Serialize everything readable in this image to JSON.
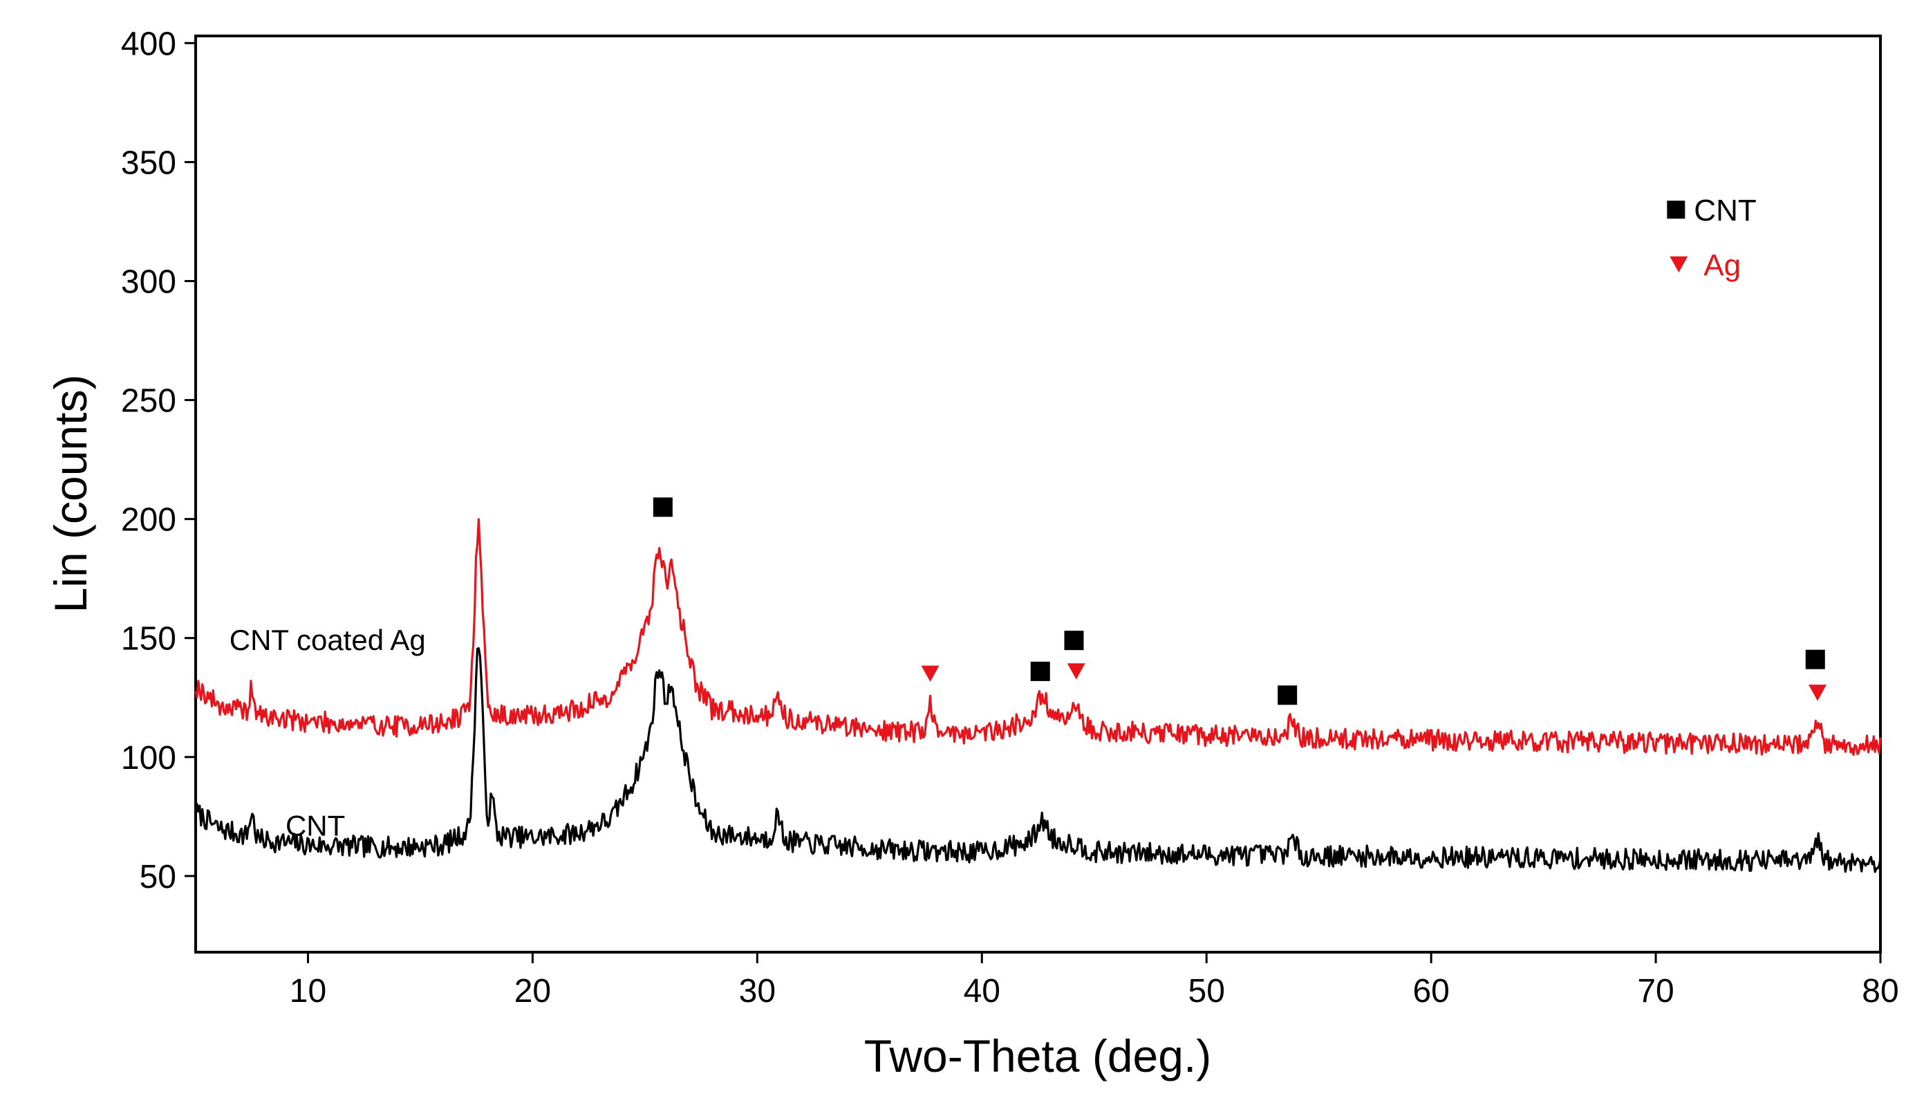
{
  "chart_data": {
    "type": "line",
    "title": "",
    "xlabel": "Two-Theta (deg.)",
    "ylabel": "Lin (counts)",
    "xlim": [
      5,
      80
    ],
    "ylim": [
      18,
      403
    ],
    "xticks": [
      10,
      20,
      30,
      40,
      50,
      60,
      70,
      80
    ],
    "yticks": [
      50,
      100,
      150,
      200,
      250,
      300,
      350,
      400
    ],
    "xtick_labels": [
      "10",
      "20",
      "30",
      "40",
      "50",
      "60",
      "70",
      "80"
    ],
    "ytick_labels": [
      "50",
      "100",
      "150",
      "200",
      "250",
      "300",
      "350",
      "400"
    ],
    "grid": false,
    "colors": {
      "cnt": "#000000",
      "ag": "#e8141c"
    },
    "series": [
      {
        "name": "CNT",
        "label": "CNT",
        "label_at": [
          9,
          67
        ],
        "color": "#000000",
        "noise_amp": 4.5,
        "seed": 7,
        "baseline": [
          [
            5,
            77
          ],
          [
            6,
            70
          ],
          [
            8,
            65
          ],
          [
            10,
            63
          ],
          [
            14,
            62
          ],
          [
            16,
            63
          ],
          [
            17,
            68
          ],
          [
            20,
            66
          ],
          [
            22,
            68
          ],
          [
            23.5,
            74
          ],
          [
            24.5,
            90
          ],
          [
            25.3,
            110
          ],
          [
            25.9,
            120
          ],
          [
            26.5,
            112
          ],
          [
            27.3,
            80
          ],
          [
            28,
            68
          ],
          [
            30,
            66
          ],
          [
            33,
            63
          ],
          [
            36,
            61
          ],
          [
            40,
            60
          ],
          [
            42.5,
            65
          ],
          [
            44,
            64
          ],
          [
            45,
            60
          ],
          [
            50,
            59
          ],
          [
            60,
            58
          ],
          [
            70,
            57
          ],
          [
            80,
            56
          ]
        ],
        "peaks": [
          [
            17.6,
            80,
            0.18
          ],
          [
            18.2,
            15,
            0.1
          ],
          [
            7.5,
            10,
            0.1
          ],
          [
            25.6,
            22,
            0.18
          ],
          [
            26.2,
            15,
            0.12
          ],
          [
            30.9,
            10,
            0.15
          ],
          [
            42.7,
            8,
            0.25
          ],
          [
            53.8,
            6,
            0.2
          ],
          [
            77.2,
            8,
            0.15
          ]
        ]
      },
      {
        "name": "CNT coated Ag",
        "label": "CNT coated Ag",
        "label_at": [
          6.5,
          145
        ],
        "color": "#e8141c",
        "noise_amp": 4.5,
        "seed": 19,
        "baseline": [
          [
            5,
            130
          ],
          [
            6,
            122
          ],
          [
            8,
            117
          ],
          [
            10,
            115
          ],
          [
            14,
            113
          ],
          [
            16,
            114
          ],
          [
            17,
            118
          ],
          [
            20,
            117
          ],
          [
            22,
            120
          ],
          [
            23.5,
            126
          ],
          [
            24.5,
            142
          ],
          [
            25.3,
            160
          ],
          [
            25.9,
            170
          ],
          [
            26.5,
            162
          ],
          [
            27.3,
            130
          ],
          [
            28,
            120
          ],
          [
            30,
            118
          ],
          [
            33,
            114
          ],
          [
            36,
            111
          ],
          [
            40,
            110
          ],
          [
            42.5,
            116
          ],
          [
            44,
            115
          ],
          [
            45,
            111
          ],
          [
            50,
            109
          ],
          [
            60,
            107
          ],
          [
            70,
            106
          ],
          [
            80,
            105
          ]
        ],
        "peaks": [
          [
            17.6,
            78,
            0.18
          ],
          [
            7.5,
            10,
            0.1
          ],
          [
            25.6,
            22,
            0.18
          ],
          [
            26.2,
            15,
            0.12
          ],
          [
            30.9,
            10,
            0.15
          ],
          [
            37.7,
            12,
            0.12
          ],
          [
            42.7,
            9,
            0.25
          ],
          [
            44.2,
            8,
            0.2
          ],
          [
            53.8,
            6,
            0.2
          ],
          [
            77.2,
            10,
            0.15
          ]
        ]
      }
    ],
    "markers": [
      {
        "type": "CNT",
        "x": 25.8,
        "y": 205
      },
      {
        "type": "CNT",
        "x": 42.6,
        "y": 136
      },
      {
        "type": "CNT",
        "x": 44.1,
        "y": 149
      },
      {
        "type": "CNT",
        "x": 53.6,
        "y": 126
      },
      {
        "type": "CNT",
        "x": 77.1,
        "y": 141
      },
      {
        "type": "Ag",
        "x": 37.7,
        "y": 135
      },
      {
        "type": "Ag",
        "x": 44.2,
        "y": 136
      },
      {
        "type": "Ag",
        "x": 77.2,
        "y": 127
      }
    ],
    "legend": {
      "placement": "top-right",
      "entries": [
        {
          "key": "CNT",
          "label": "CNT",
          "symbol": "square",
          "color": "#000000"
        },
        {
          "key": "Ag",
          "label": "Ag",
          "symbol": "triangle-down",
          "color": "#e8141c"
        }
      ]
    }
  }
}
